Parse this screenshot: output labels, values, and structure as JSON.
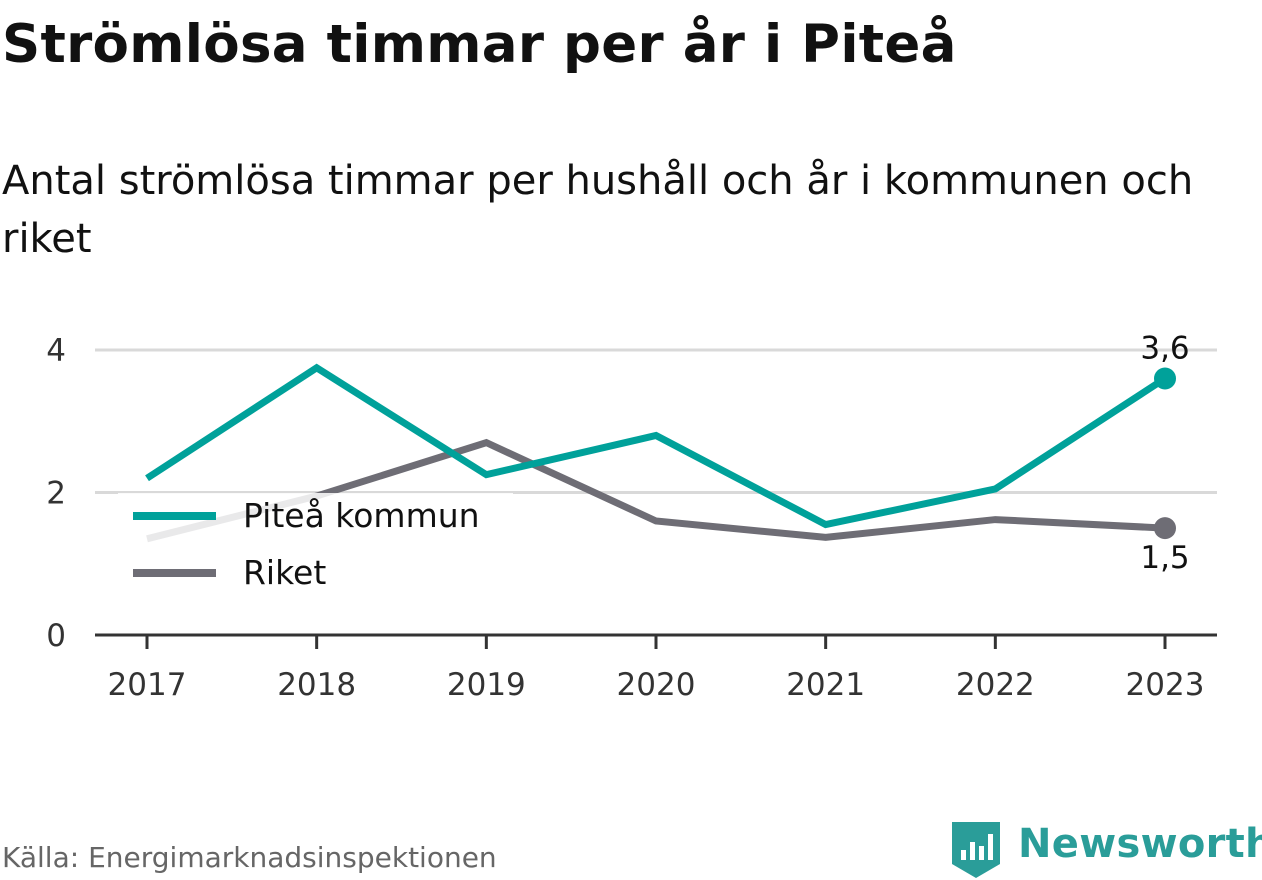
{
  "header": {
    "title": "Strömlösa timmar per år i Piteå",
    "subtitle": "Antal strömlösa timmar per hushåll och år i kommunen och riket"
  },
  "footer": {
    "source": "Källa: Energimarknadsinspektionen",
    "brand": "Newsworthy"
  },
  "colors": {
    "pitea": "#00a19a",
    "riket": "#6e6d75",
    "grid": "#d9d9d9",
    "brand": "#2a9d99"
  },
  "chart_data": {
    "type": "line",
    "categories": [
      "2017",
      "2018",
      "2019",
      "2020",
      "2021",
      "2022",
      "2023"
    ],
    "series": [
      {
        "name": "Piteå kommun",
        "values": [
          2.2,
          3.75,
          2.25,
          2.8,
          1.55,
          2.05,
          3.6
        ],
        "end_label": "3,6"
      },
      {
        "name": "Riket",
        "values": [
          1.35,
          1.95,
          2.7,
          1.6,
          1.37,
          1.62,
          1.5
        ],
        "end_label": "1,5"
      }
    ],
    "yticks": [
      "0",
      "2",
      "4"
    ],
    "ylim": [
      0,
      4
    ],
    "grid": true,
    "legend": "left",
    "xlabel": "",
    "ylabel": ""
  }
}
